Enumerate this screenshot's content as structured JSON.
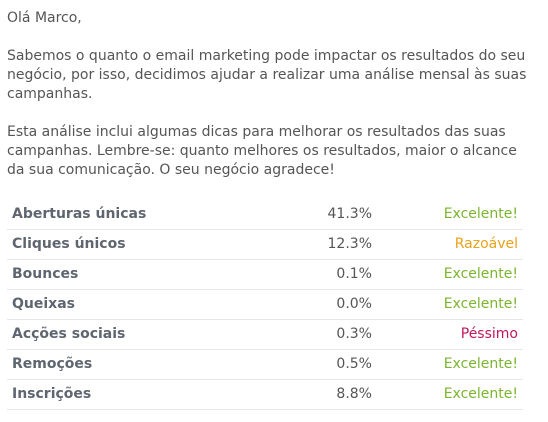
{
  "email": {
    "greeting": "Olá Marco,",
    "paragraph1": "Sabemos o quanto o email marketing pode impactar os resultados do seu negócio, por isso, decidimos ajudar a realizar uma análise mensal às suas campanhas.",
    "paragraph2": "Esta análise inclui algumas dicas para melhorar os resultados das suas campanhas. Lembre-se: quanto melhores os resultados, maior o alcance da sua comunicação. O seu negócio agradece!"
  },
  "colors": {
    "excelente": "#7ab52e",
    "razoavel": "#e9a219",
    "pessimo": "#c2185b"
  },
  "stats": [
    {
      "label": "Aberturas únicas",
      "value": "41.3%",
      "status": "Excelente!",
      "level": "ok"
    },
    {
      "label": "Cliques únicos",
      "value": "12.3%",
      "status": "Razoável",
      "level": "mid"
    },
    {
      "label": "Bounces",
      "value": "0.1%",
      "status": "Excelente!",
      "level": "ok"
    },
    {
      "label": "Queixas",
      "value": "0.0%",
      "status": "Excelente!",
      "level": "ok"
    },
    {
      "label": "Acções sociais",
      "value": "0.3%",
      "status": "Péssimo",
      "level": "bad"
    },
    {
      "label": "Remoções",
      "value": "0.5%",
      "status": "Excelente!",
      "level": "ok"
    },
    {
      "label": "Inscrições",
      "value": "8.8%",
      "status": "Excelente!",
      "level": "ok"
    }
  ]
}
